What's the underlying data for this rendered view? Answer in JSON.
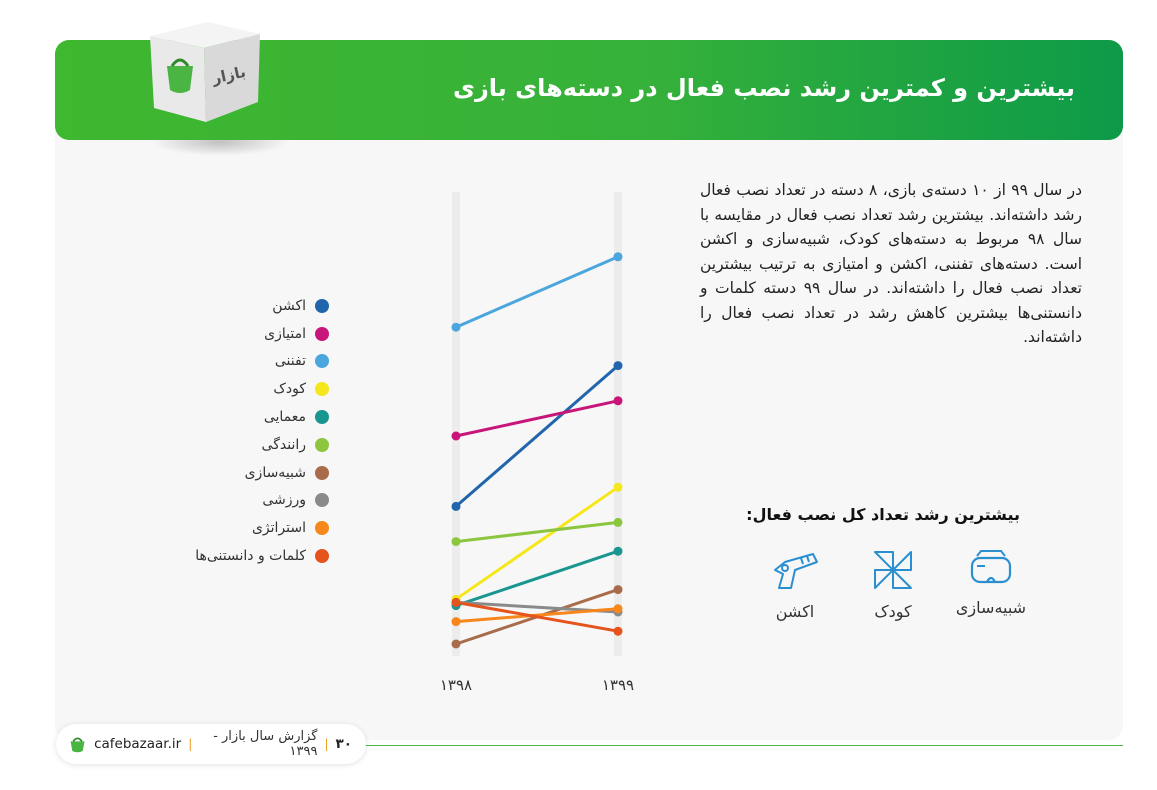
{
  "header": {
    "title": "بیشترین و کمترین رشد نصب فعال در دسته‌های بازی",
    "box_label": "بازار"
  },
  "paragraph": "در سال ۹۹ از ۱۰ دسته‌ی بازی، ۸ دسته در تعداد نصب فعال رشد داشته‌اند. بیشترین رشد تعداد نصب فعال در مقایسه با سال ۹۸ مربوط به دسته‌های کودک، شبیه‌سازی و اکشن است. دسته‌های تفننی، اکشن و امتیازی به ترتیب بیشترین تعداد نصب فعال را داشته‌اند. در سال ۹۹ دسته کلمات و دانستنی‌ها بیشترین کاهش رشد در تعداد نصب فعال را داشته‌اند.",
  "top_growth": {
    "title": "بیشترین رشد تعداد کل نصب فعال:",
    "items": [
      {
        "label": "شبیه‌سازی",
        "icon": "vr-goggles-icon"
      },
      {
        "label": "کودک",
        "icon": "pinwheel-icon"
      },
      {
        "label": "اکشن",
        "icon": "toy-gun-icon"
      }
    ]
  },
  "chart_data": {
    "type": "line",
    "x": [
      "۱۳۹۸",
      "۱۳۹۹"
    ],
    "ylim": [
      0,
      100
    ],
    "series": [
      {
        "name": "اکشن",
        "color": "#2166ac",
        "values": [
          38,
          82
        ]
      },
      {
        "name": "امتیازی",
        "color": "#c8157a",
        "values": [
          60,
          71
        ]
      },
      {
        "name": "تفننی",
        "color": "#4aa6dc",
        "values": [
          94,
          116
        ]
      },
      {
        "name": "کودک",
        "color": "#f6e61c",
        "values": [
          9,
          44
        ]
      },
      {
        "name": "معمایی",
        "color": "#1a9690",
        "values": [
          7,
          24
        ]
      },
      {
        "name": "رانندگی",
        "color": "#8cc63f",
        "values": [
          27,
          33
        ]
      },
      {
        "name": "شبیه‌سازی",
        "color": "#a86c4a",
        "values": [
          -5,
          12
        ]
      },
      {
        "name": "ورزشی",
        "color": "#8a8a8a",
        "values": [
          8,
          5
        ]
      },
      {
        "name": "استراتژی",
        "color": "#f7861b",
        "values": [
          2,
          6
        ]
      },
      {
        "name": "کلمات و دانستنی‌ها",
        "color": "#e4541c",
        "values": [
          8,
          -1
        ]
      }
    ]
  },
  "footer": {
    "site": "cafebazaar.ir",
    "report": "گزارش سال بازار - ۱۳۹۹",
    "page": "۳۰",
    "accent": "#f0a020"
  }
}
